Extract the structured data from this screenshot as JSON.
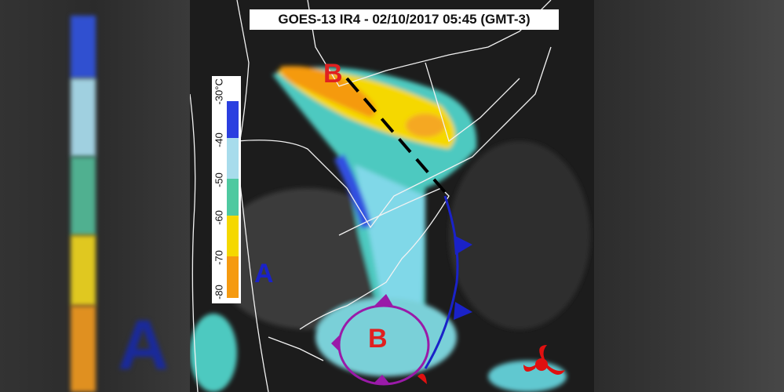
{
  "title": "GOES-13 IR4 - 02/10/2017 05:45 (GMT-3)",
  "legend": {
    "ticks": [
      "-30°C",
      "-40",
      "-50",
      "-60",
      "-70",
      "-80"
    ],
    "colors": [
      "#2a3fe0",
      "#a8dcec",
      "#4ec9a0",
      "#f5d800",
      "#f59a10"
    ]
  },
  "labels": {
    "low_north": "B",
    "low_south": "B",
    "high": "A"
  },
  "colors": {
    "low": "#e02020",
    "high": "#1a22c8",
    "cold_front": "#1a22c8",
    "occluded": "#9a1aa8",
    "warm": "#e01010"
  }
}
